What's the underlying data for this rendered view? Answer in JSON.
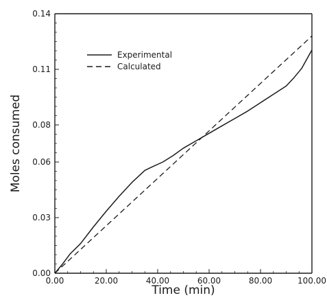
{
  "chart_data": {
    "type": "line",
    "title": "",
    "xlabel": "Time  (min)",
    "ylabel": "Moles  consumed",
    "xlim": [
      0,
      100
    ],
    "ylim": [
      0,
      0.14
    ],
    "x_ticks": [
      {
        "value": 0,
        "label": "0.00"
      },
      {
        "value": 20,
        "label": "20.00"
      },
      {
        "value": 40,
        "label": "40.00"
      },
      {
        "value": 60,
        "label": "60.00"
      },
      {
        "value": 80,
        "label": "80.00"
      },
      {
        "value": 100,
        "label": "100.00"
      }
    ],
    "y_ticks": [
      {
        "value": 0,
        "label": "0.00"
      },
      {
        "value": 0.03,
        "label": "0.03"
      },
      {
        "value": 0.06,
        "label": "0.06"
      },
      {
        "value": 0.08,
        "label": "0.08"
      },
      {
        "value": 0.11,
        "label": "0.11"
      },
      {
        "value": 0.14,
        "label": "0.14"
      }
    ],
    "grid": false,
    "legend": "upper-left",
    "series": [
      {
        "name": "Experimental",
        "style": "solid",
        "color": "#1a1a1a",
        "x": [
          0,
          3,
          6,
          10,
          15,
          20,
          25,
          30,
          35,
          38,
          42,
          46,
          50,
          55,
          60,
          65,
          70,
          75,
          80,
          85,
          90,
          93,
          96,
          100
        ],
        "y": [
          0,
          0.005,
          0.0105,
          0.016,
          0.025,
          0.0335,
          0.0415,
          0.049,
          0.0555,
          0.0575,
          0.06,
          0.0635,
          0.0675,
          0.0715,
          0.0755,
          0.0795,
          0.0835,
          0.0875,
          0.092,
          0.0965,
          0.101,
          0.1055,
          0.1105,
          0.1205
        ]
      },
      {
        "name": "Calculated",
        "style": "dashed",
        "color": "#1a1a1a",
        "x": [
          0,
          100
        ],
        "y": [
          0,
          0.128
        ]
      }
    ]
  }
}
